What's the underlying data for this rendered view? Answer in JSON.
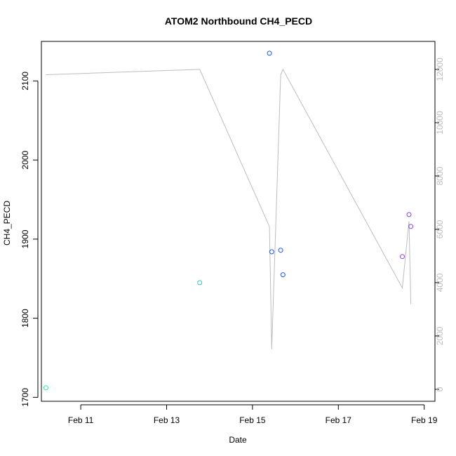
{
  "chart_data": {
    "type": "scatter",
    "title": "ATOM2 Northbound CH4_PECD",
    "xlabel": "Date",
    "ylabel": "CH4_PECD",
    "x_ticks": [
      {
        "date": "2000-02-11",
        "label": "Feb 11"
      },
      {
        "date": "2000-02-13",
        "label": "Feb 13"
      },
      {
        "date": "2000-02-15",
        "label": "Feb 15"
      },
      {
        "date": "2000-02-17",
        "label": "Feb 17"
      },
      {
        "date": "2000-02-19",
        "label": "Feb 19"
      }
    ],
    "xlim": [
      "2000-02-10T02:00",
      "2000-02-19T06:00"
    ],
    "y_ticks": [
      1700,
      1800,
      1900,
      2000,
      2100
    ],
    "ylim": [
      1695,
      2150
    ],
    "y2_ticks": [
      0,
      2000,
      4000,
      6000,
      8000,
      10000,
      12000
    ],
    "y2lim": [
      -450,
      13050
    ],
    "grid": false,
    "points": [
      {
        "x": "2000-02-10T04:30",
        "y": 1712,
        "color": "#33ddaa"
      },
      {
        "x": "2000-02-13T18:30",
        "y": 1845,
        "color": "#22cccc"
      },
      {
        "x": "2000-02-15T09:30",
        "y": 2135,
        "color": "#2255dd"
      },
      {
        "x": "2000-02-15T10:45",
        "y": 1884,
        "color": "#2255dd"
      },
      {
        "x": "2000-02-15T15:45",
        "y": 1886,
        "color": "#2255dd"
      },
      {
        "x": "2000-02-15T17:00",
        "y": 1855,
        "color": "#2255dd"
      },
      {
        "x": "2000-02-18T11:45",
        "y": 1878,
        "color": "#8844dd"
      },
      {
        "x": "2000-02-18T15:30",
        "y": 1931,
        "color": "#8844dd"
      },
      {
        "x": "2000-02-18T16:30",
        "y": 1916,
        "color": "#8844dd"
      }
    ],
    "altitude_line": {
      "color": "#bdbdbd",
      "points": [
        {
          "x": "2000-02-10T04:30",
          "y2": 11800
        },
        {
          "x": "2000-02-13T18:30",
          "y2": 12000
        },
        {
          "x": "2000-02-15T09:30",
          "y2": 6100
        },
        {
          "x": "2000-02-15T10:45",
          "y2": 1500
        },
        {
          "x": "2000-02-15T15:45",
          "y2": 11800
        },
        {
          "x": "2000-02-15T17:00",
          "y2": 12000
        },
        {
          "x": "2000-02-18T11:45",
          "y2": 3800
        },
        {
          "x": "2000-02-18T15:30",
          "y2": 6300
        },
        {
          "x": "2000-02-18T16:30",
          "y2": 3200
        }
      ]
    }
  }
}
